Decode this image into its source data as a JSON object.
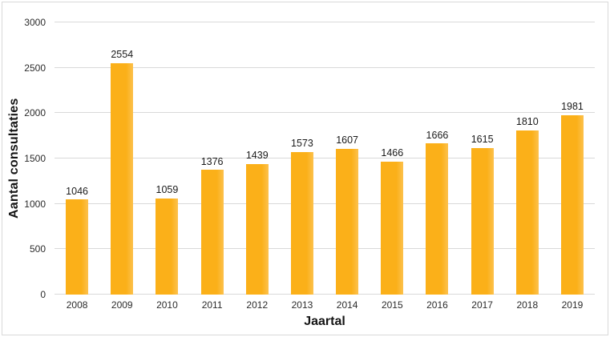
{
  "chart_data": {
    "type": "bar",
    "title": "",
    "xlabel": "Jaartal",
    "ylabel": "Aantal consultaties",
    "categories": [
      "2008",
      "2009",
      "2010",
      "2011",
      "2012",
      "2013",
      "2014",
      "2015",
      "2016",
      "2017",
      "2018",
      "2019"
    ],
    "values": [
      1046,
      2554,
      1059,
      1376,
      1439,
      1573,
      1607,
      1466,
      1666,
      1615,
      1810,
      1981
    ],
    "data_labels": [
      1046,
      2554,
      1059,
      1376,
      1439,
      1573,
      1607,
      1466,
      1666,
      1615,
      1810,
      1981
    ],
    "ylim": [
      0,
      3000
    ],
    "yticks": [
      0,
      500,
      1000,
      1500,
      2000,
      2500,
      3000
    ],
    "grid": true,
    "legend": null,
    "colors": {
      "bar": "#FBB019",
      "bar_edge_highlight": "#FCC14D",
      "gridline": "#D9D9D9",
      "frame_border": "#D9D9D9",
      "text": "#1A1A1A",
      "background": "#FFFFFF"
    }
  }
}
